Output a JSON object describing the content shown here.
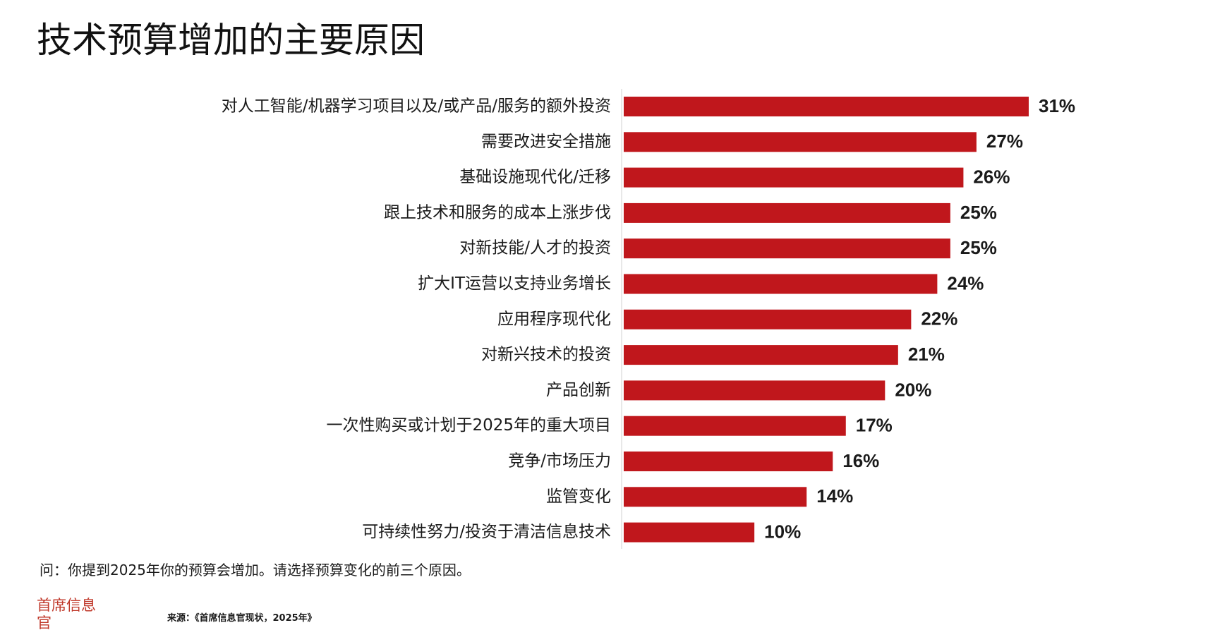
{
  "page": {
    "title": "技术预算增加的主要原因",
    "question": "问：你提到2025年你的预算会增加。请选择预算变化的前三个原因。",
    "brand": "首席信息官",
    "source": "来源：《首席信息官现状，2025年》"
  },
  "colors": {
    "bar": "#c0171c",
    "brand": "#c0392b",
    "axis": "#e0e0e0"
  },
  "chart_data": {
    "type": "bar",
    "orientation": "horizontal",
    "categories": [
      "对人工智能/机器学习项目以及/或产品/服务的额外投资",
      "需要改进安全措施",
      "基础设施现代化/迁移",
      "跟上技术和服务的成本上涨步伐",
      "对新技能/人才的投资",
      "扩大IT运营以支持业务增长",
      "应用程序现代化",
      "对新兴技术的投资",
      "产品创新",
      "一次性购买或计划于2025年的重大项目",
      "竞争/市场压力",
      "监管变化",
      "可持续性努力/投资于清洁信息技术"
    ],
    "values": [
      31,
      27,
      26,
      25,
      25,
      24,
      22,
      21,
      20,
      17,
      16,
      14,
      10
    ],
    "value_labels": [
      "31%",
      "27%",
      "26%",
      "25%",
      "25%",
      "24%",
      "22%",
      "21%",
      "20%",
      "17%",
      "16%",
      "14%",
      "10%"
    ],
    "xlim": [
      0,
      31
    ],
    "legend": "none",
    "grid": false
  }
}
